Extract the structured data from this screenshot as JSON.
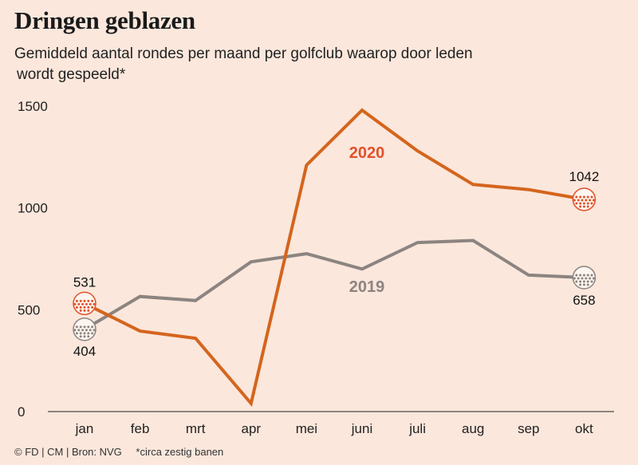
{
  "header": {
    "title": "Dringen geblazen",
    "subtitle_line1": "Gemiddeld aantal rondes per maand per golfclub waarop door leden",
    "subtitle_line2": "wordt gespeeld*"
  },
  "footer": {
    "source": "© FD | CM | Bron: NVG",
    "note": "*circa zestig banen"
  },
  "colors": {
    "background": "#fbe7dc",
    "series_2020": "#d4651d",
    "series_2019": "#8c8480",
    "label_2020": "#e0522a",
    "label_2019": "#8c8480"
  },
  "chart_data": {
    "type": "line",
    "categories": [
      "jan",
      "feb",
      "mrt",
      "apr",
      "mei",
      "juni",
      "juli",
      "aug",
      "sep",
      "okt"
    ],
    "ylim": [
      0,
      1500
    ],
    "yticks": [
      "0",
      "500",
      "1000",
      "1500"
    ],
    "grid": false,
    "series": [
      {
        "name": "2020",
        "values": [
          531,
          395,
          360,
          40,
          1210,
          1480,
          1280,
          1115,
          1090,
          1042
        ]
      },
      {
        "name": "2019",
        "values": [
          404,
          565,
          545,
          735,
          775,
          700,
          830,
          840,
          670,
          658
        ]
      }
    ],
    "annotations": {
      "2020_start": "531",
      "2020_end": "1042",
      "2019_start": "404",
      "2019_end": "658"
    }
  }
}
